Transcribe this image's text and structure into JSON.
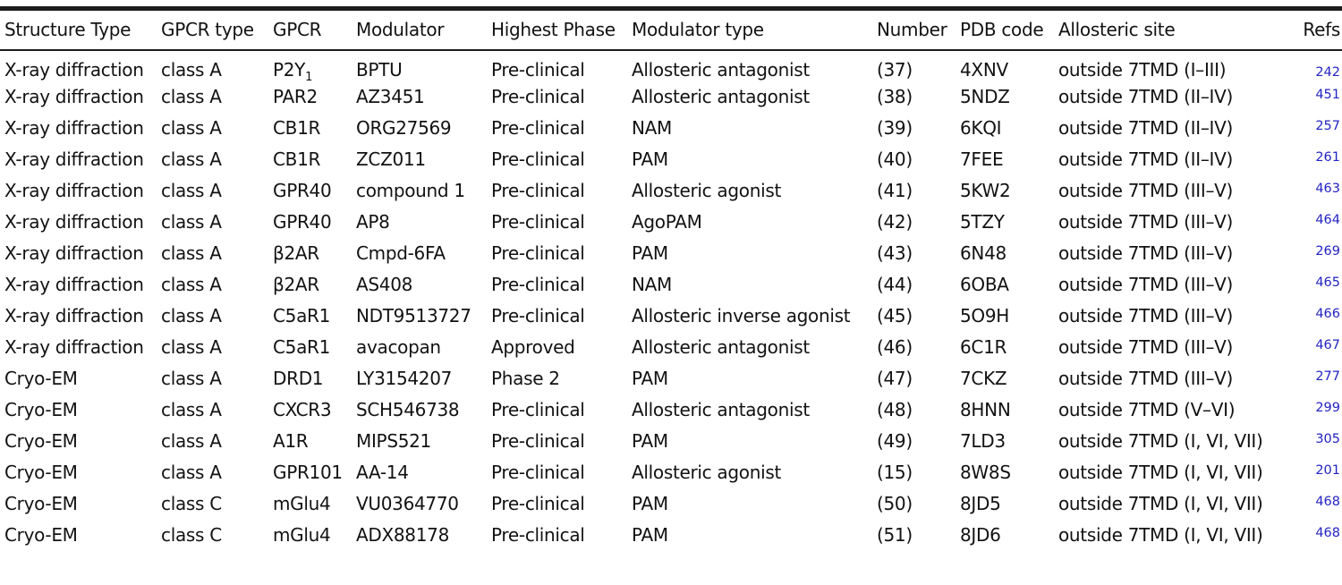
{
  "table": {
    "colors": {
      "reference_link": "#2323c3",
      "text": "#121212",
      "rule": "#1c1c1c"
    },
    "columns": [
      "Structure Type",
      "GPCR type",
      "GPCR",
      "Modulator",
      "Highest Phase",
      "Modulator type",
      "Number",
      "PDB code",
      "Allosteric site",
      "Refs"
    ],
    "rows": [
      {
        "structure_type": "X-ray diffraction",
        "gpcr_type": "class A",
        "gpcr": "P2Y",
        "gpcr_sub": "1",
        "modulator": "BPTU",
        "highest_phase": "Pre-clinical",
        "modulator_type": "Allosteric antagonist",
        "number": "(37)",
        "pdb_code": "4XNV",
        "allosteric_site": "outside 7TMD (I–III)",
        "ref": "242"
      },
      {
        "structure_type": "X-ray diffraction",
        "gpcr_type": "class A",
        "gpcr": "PAR2",
        "modulator": "AZ3451",
        "highest_phase": "Pre-clinical",
        "modulator_type": "Allosteric antagonist",
        "number": "(38)",
        "pdb_code": "5NDZ",
        "allosteric_site": "outside 7TMD (II–IV)",
        "ref": "451"
      },
      {
        "structure_type": "X-ray diffraction",
        "gpcr_type": "class A",
        "gpcr": "CB1R",
        "modulator": "ORG27569",
        "highest_phase": "Pre-clinical",
        "modulator_type": "NAM",
        "number": "(39)",
        "pdb_code": "6KQI",
        "allosteric_site": "outside 7TMD (II–IV)",
        "ref": "257"
      },
      {
        "structure_type": "X-ray diffraction",
        "gpcr_type": "class A",
        "gpcr": "CB1R",
        "modulator": "ZCZ011",
        "highest_phase": "Pre-clinical",
        "modulator_type": "PAM",
        "number": "(40)",
        "pdb_code": "7FEE",
        "allosteric_site": "outside 7TMD (II–IV)",
        "ref": "261"
      },
      {
        "structure_type": "X-ray diffraction",
        "gpcr_type": "class A",
        "gpcr": "GPR40",
        "modulator": "compound 1",
        "highest_phase": "Pre-clinical",
        "modulator_type": "Allosteric agonist",
        "number": "(41)",
        "pdb_code": "5KW2",
        "allosteric_site": "outside 7TMD (III–V)",
        "ref": "463"
      },
      {
        "structure_type": "X-ray diffraction",
        "gpcr_type": "class A",
        "gpcr": "GPR40",
        "modulator": "AP8",
        "highest_phase": "Pre-clinical",
        "modulator_type": "AgoPAM",
        "number": "(42)",
        "pdb_code": "5TZY",
        "allosteric_site": "outside 7TMD (III–V)",
        "ref": "464"
      },
      {
        "structure_type": "X-ray diffraction",
        "gpcr_type": "class A",
        "gpcr": "β2AR",
        "modulator": "Cmpd-6FA",
        "highest_phase": "Pre-clinical",
        "modulator_type": "PAM",
        "number": "(43)",
        "pdb_code": "6N48",
        "allosteric_site": "outside 7TMD (III–V)",
        "ref": "269"
      },
      {
        "structure_type": "X-ray diffraction",
        "gpcr_type": "class A",
        "gpcr": "β2AR",
        "modulator": "AS408",
        "highest_phase": "Pre-clinical",
        "modulator_type": "NAM",
        "number": "(44)",
        "pdb_code": "6OBA",
        "allosteric_site": "outside 7TMD (III–V)",
        "ref": "465"
      },
      {
        "structure_type": "X-ray diffraction",
        "gpcr_type": "class A",
        "gpcr": "C5aR1",
        "modulator": "NDT9513727",
        "highest_phase": "Pre-clinical",
        "modulator_type": "Allosteric inverse agonist",
        "number": "(45)",
        "pdb_code": "5O9H",
        "allosteric_site": "outside 7TMD (III–V)",
        "ref": "466"
      },
      {
        "structure_type": "X-ray diffraction",
        "gpcr_type": "class A",
        "gpcr": "C5aR1",
        "modulator": "avacopan",
        "highest_phase": "Approved",
        "modulator_type": "Allosteric antagonist",
        "number": "(46)",
        "pdb_code": "6C1R",
        "allosteric_site": "outside 7TMD (III–V)",
        "ref": "467"
      },
      {
        "structure_type": "Cryo-EM",
        "gpcr_type": "class A",
        "gpcr": "DRD1",
        "modulator": "LY3154207",
        "highest_phase": "Phase 2",
        "modulator_type": "PAM",
        "number": "(47)",
        "pdb_code": "7CKZ",
        "allosteric_site": "outside 7TMD (III–V)",
        "ref": "277"
      },
      {
        "structure_type": "Cryo-EM",
        "gpcr_type": "class A",
        "gpcr": "CXCR3",
        "modulator": "SCH546738",
        "highest_phase": "Pre-clinical",
        "modulator_type": "Allosteric antagonist",
        "number": "(48)",
        "pdb_code": "8HNN",
        "allosteric_site": "outside 7TMD (V–VI)",
        "ref": "299"
      },
      {
        "structure_type": "Cryo-EM",
        "gpcr_type": "class A",
        "gpcr": "A1R",
        "modulator": "MIPS521",
        "highest_phase": "Pre-clinical",
        "modulator_type": "PAM",
        "number": "(49)",
        "pdb_code": "7LD3",
        "allosteric_site": "outside 7TMD (I, VI, VII)",
        "ref": "305"
      },
      {
        "structure_type": "Cryo-EM",
        "gpcr_type": "class A",
        "gpcr": "GPR101",
        "modulator": "AA-14",
        "highest_phase": "Pre-clinical",
        "modulator_type": "Allosteric agonist",
        "number": "(15)",
        "pdb_code": "8W8S",
        "allosteric_site": "outside 7TMD (I, VI, VII)",
        "ref": "201"
      },
      {
        "structure_type": "Cryo-EM",
        "gpcr_type": "class C",
        "gpcr": "mGlu4",
        "modulator": "VU0364770",
        "highest_phase": "Pre-clinical",
        "modulator_type": "PAM",
        "number": "(50)",
        "pdb_code": "8JD5",
        "allosteric_site": "outside 7TMD (I, VI, VII)",
        "ref": "468"
      },
      {
        "structure_type": "Cryo-EM",
        "gpcr_type": "class C",
        "gpcr": "mGlu4",
        "modulator": "ADX88178",
        "highest_phase": "Pre-clinical",
        "modulator_type": "PAM",
        "number": "(51)",
        "pdb_code": "8JD6",
        "allosteric_site": "outside 7TMD (I, VI, VII)",
        "ref": "468"
      }
    ]
  }
}
